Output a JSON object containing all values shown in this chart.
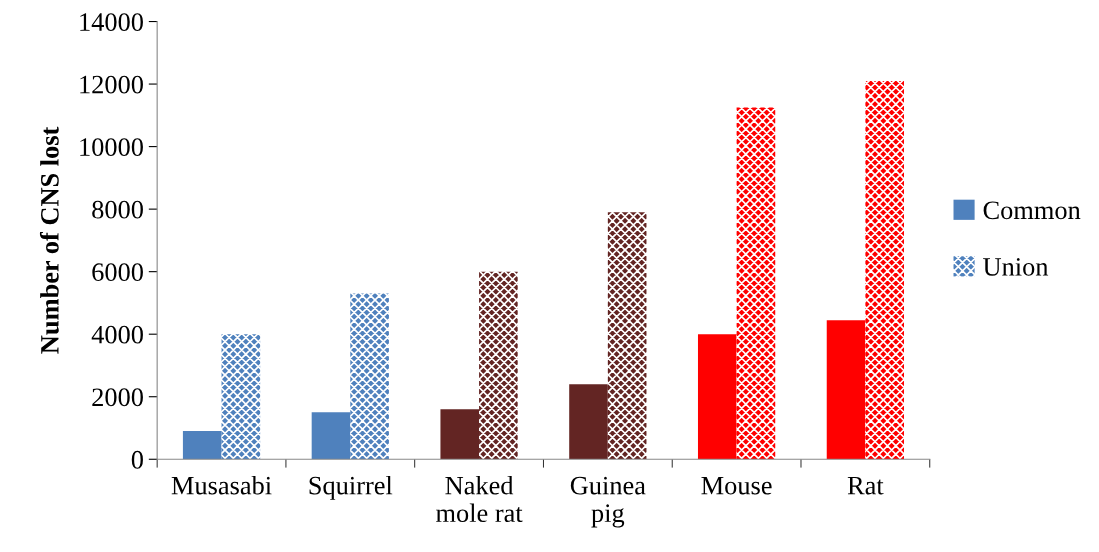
{
  "chart_data": {
    "type": "bar",
    "ylabel": "Number of CNS lost",
    "categories": [
      "Musasabi",
      "Squirrel",
      "Naked\nmole rat",
      "Guinea\npig",
      "Mouse",
      "Rat"
    ],
    "series": [
      {
        "name": "Common",
        "color": "#4f81bd",
        "colors": [
          "#4f81bd",
          "#4f81bd",
          "#632523",
          "#632523",
          "#ff0000",
          "#ff0000"
        ],
        "values": [
          900,
          1500,
          1600,
          2400,
          4000,
          4450
        ]
      },
      {
        "name": "Union",
        "color": "#4f81bd",
        "colors": [
          "#4f81bd",
          "#4f81bd",
          "#632523",
          "#632523",
          "#ff0000",
          "#ff0000"
        ],
        "values": [
          4000,
          5300,
          6000,
          7900,
          11250,
          12100
        ]
      }
    ],
    "ylim": [
      0,
      14000
    ],
    "yticks": [
      0,
      2000,
      4000,
      6000,
      8000,
      10000,
      12000,
      14000
    ],
    "grid": false,
    "legend": "right"
  }
}
